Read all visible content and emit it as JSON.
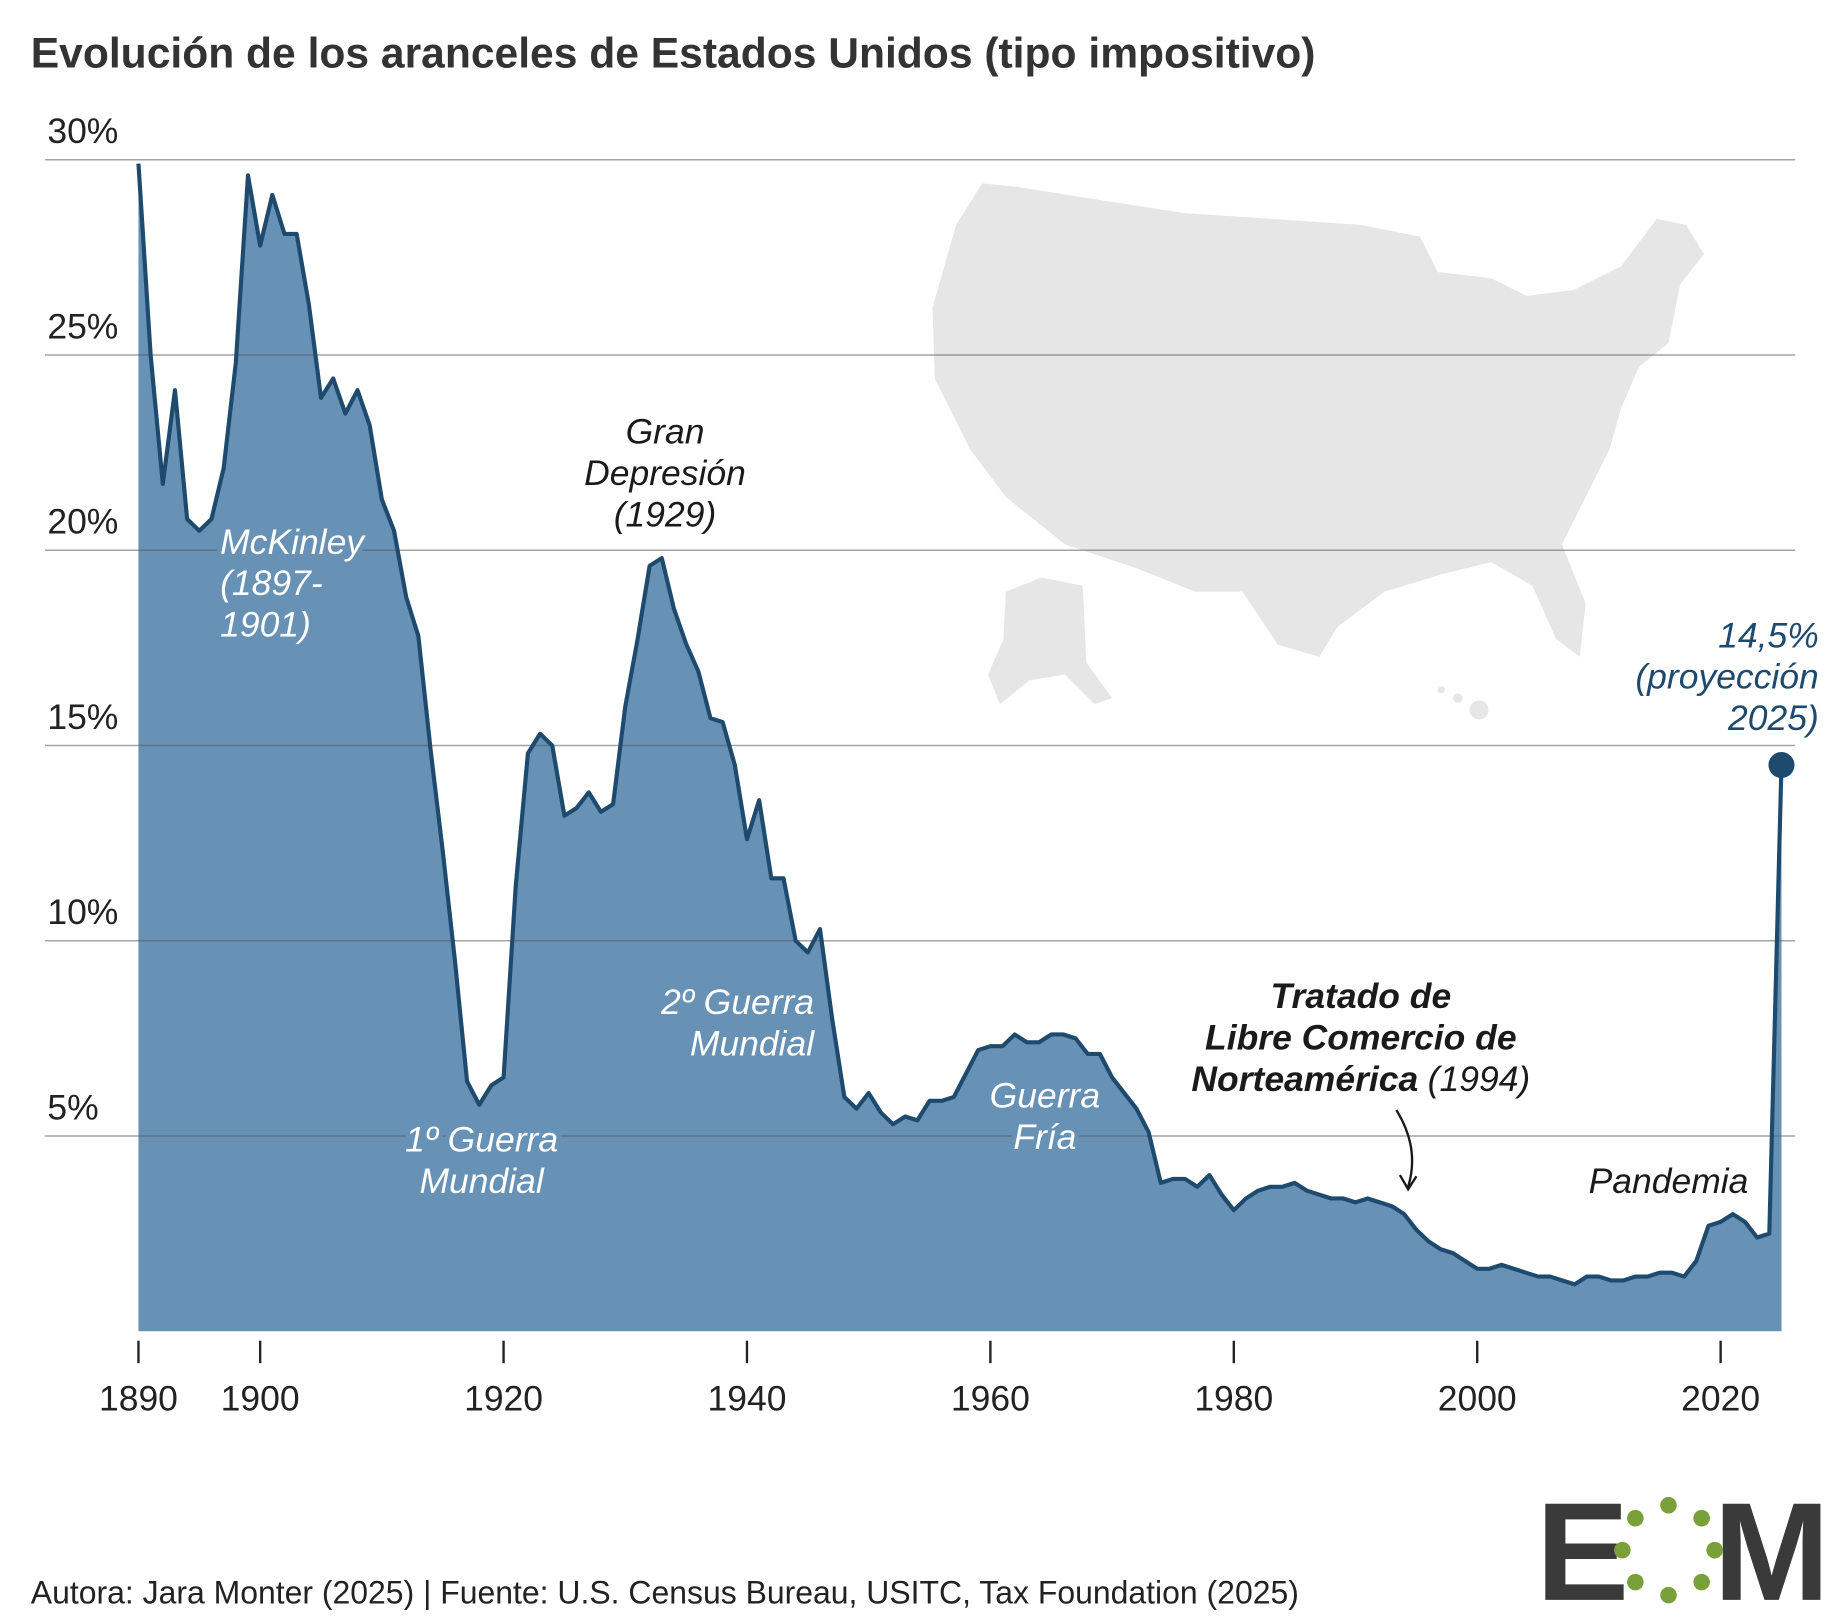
{
  "chart_data": {
    "type": "area",
    "title": "Evolución de los aranceles de Estados Unidos (tipo impositivo)",
    "footer": "Autora: Jara Monter (2025) | Fuente: U.S. Census Bureau, USITC, Tax Foundation (2025)",
    "logo": {
      "left": "E",
      "right": "M"
    },
    "x": [
      1890,
      1891,
      1892,
      1893,
      1894,
      1895,
      1896,
      1897,
      1898,
      1899,
      1900,
      1901,
      1902,
      1903,
      1904,
      1905,
      1906,
      1907,
      1908,
      1909,
      1910,
      1911,
      1912,
      1913,
      1914,
      1915,
      1916,
      1917,
      1918,
      1919,
      1920,
      1921,
      1922,
      1923,
      1924,
      1925,
      1926,
      1927,
      1928,
      1929,
      1930,
      1931,
      1932,
      1933,
      1934,
      1935,
      1936,
      1937,
      1938,
      1939,
      1940,
      1941,
      1942,
      1943,
      1944,
      1945,
      1946,
      1947,
      1948,
      1949,
      1950,
      1951,
      1952,
      1953,
      1954,
      1955,
      1956,
      1957,
      1958,
      1959,
      1960,
      1961,
      1962,
      1963,
      1964,
      1965,
      1966,
      1967,
      1968,
      1969,
      1970,
      1971,
      1972,
      1973,
      1974,
      1975,
      1976,
      1977,
      1978,
      1979,
      1980,
      1981,
      1982,
      1983,
      1984,
      1985,
      1986,
      1987,
      1988,
      1989,
      1990,
      1991,
      1992,
      1993,
      1994,
      1995,
      1996,
      1997,
      1998,
      1999,
      2000,
      2001,
      2002,
      2003,
      2004,
      2005,
      2006,
      2007,
      2008,
      2009,
      2010,
      2011,
      2012,
      2013,
      2014,
      2015,
      2016,
      2017,
      2018,
      2019,
      2020,
      2021,
      2022,
      2023,
      2024,
      2025
    ],
    "series": [
      {
        "color": "#6791b5",
        "line_color": "#1e4a6e",
        "values": [
          29.9,
          25.0,
          21.7,
          24.1,
          20.8,
          20.5,
          20.8,
          22.1,
          24.8,
          29.6,
          27.8,
          29.1,
          28.1,
          28.1,
          26.3,
          23.9,
          24.4,
          23.5,
          24.1,
          23.2,
          21.3,
          20.5,
          18.8,
          17.8,
          14.9,
          12.3,
          9.5,
          6.4,
          5.8,
          6.3,
          6.5,
          11.4,
          14.8,
          15.3,
          15.0,
          13.2,
          13.4,
          13.8,
          13.3,
          13.5,
          16.0,
          17.7,
          19.6,
          19.8,
          18.5,
          17.6,
          16.9,
          15.7,
          15.6,
          14.5,
          12.6,
          13.6,
          11.6,
          11.6,
          10.0,
          9.7,
          10.3,
          8.0,
          6.0,
          5.7,
          6.1,
          5.6,
          5.3,
          5.5,
          5.4,
          5.9,
          5.9,
          6.0,
          6.6,
          7.2,
          7.3,
          7.3,
          7.6,
          7.4,
          7.4,
          7.6,
          7.6,
          7.5,
          7.1,
          7.1,
          6.5,
          6.1,
          5.7,
          5.1,
          3.8,
          3.9,
          3.9,
          3.7,
          4.0,
          3.5,
          3.1,
          3.4,
          3.6,
          3.7,
          3.7,
          3.8,
          3.6,
          3.5,
          3.4,
          3.4,
          3.3,
          3.4,
          3.3,
          3.2,
          3.0,
          2.6,
          2.3,
          2.1,
          2.0,
          1.8,
          1.6,
          1.6,
          1.7,
          1.6,
          1.5,
          1.4,
          1.4,
          1.3,
          1.2,
          1.4,
          1.4,
          1.3,
          1.3,
          1.4,
          1.4,
          1.5,
          1.5,
          1.4,
          1.8,
          2.7,
          2.8,
          3.0,
          2.8,
          2.4,
          2.5,
          14.5
        ]
      }
    ],
    "xlim": [
      1890,
      2025
    ],
    "xticks": [
      1890,
      1900,
      1920,
      1940,
      1960,
      1980,
      2000,
      2020
    ],
    "ylim": [
      0,
      30
    ],
    "yticks": [
      {
        "value": 5,
        "label": "5%"
      },
      {
        "value": 10,
        "label": "10%"
      },
      {
        "value": 15,
        "label": "15%"
      },
      {
        "value": 20,
        "label": "20%"
      },
      {
        "value": 25,
        "label": "25%"
      },
      {
        "value": 30,
        "label": "30%"
      }
    ],
    "grid": true,
    "annotations": [
      {
        "lines": [
          "McKinley",
          "(1897-",
          "1901)"
        ]
      },
      {
        "lines": [
          "1º Guerra",
          "Mundial"
        ]
      },
      {
        "lines": [
          "Gran",
          "Depresión",
          "(1929)"
        ]
      },
      {
        "lines": [
          "2º Guerra",
          "Mundial"
        ]
      },
      {
        "lines": [
          "Guerra",
          "Fría"
        ]
      },
      {
        "lines": [
          "Tratado de",
          "Libre Comercio de",
          "Norteamérica"
        ],
        "note": "(1994)"
      },
      {
        "lines": [
          "Pandemia"
        ]
      },
      {
        "lines": [
          "14,5%",
          "(proyección",
          "2025)"
        ]
      }
    ]
  }
}
